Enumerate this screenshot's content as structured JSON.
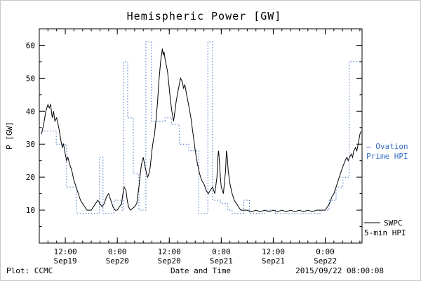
{
  "title": "Hemispheric Power [GW]",
  "ylabel": "P [GW]",
  "footer": {
    "left": "Plot: CCMC",
    "xlabel": "Date and Time",
    "timestamp": "2015/09/22 08:00:08"
  },
  "legend": {
    "ovation": {
      "line1": "– Ovation",
      "line2": "Prime HPI",
      "color": "#3a6fc4"
    },
    "swpc": {
      "line1": "SWPC",
      "line2": "5-min HPI",
      "color": "#000000"
    }
  },
  "chart_data": {
    "type": "line",
    "title": "Hemispheric Power [GW]",
    "xlabel": "Date and Time",
    "ylabel": "P [GW]",
    "x_unit": "hours since 2015-09-19 06:00",
    "xlim": [
      0,
      74.5
    ],
    "ylim": [
      0,
      65
    ],
    "yticks": [
      10,
      20,
      30,
      40,
      50,
      60
    ],
    "xticks": [
      {
        "t": 6,
        "time": "12:00",
        "date": "Sep19"
      },
      {
        "t": 18,
        "time": "0:00",
        "date": "Sep20"
      },
      {
        "t": 30,
        "time": "12:00",
        "date": "Sep20"
      },
      {
        "t": 42,
        "time": "0:00",
        "date": "Sep21"
      },
      {
        "t": 54,
        "time": "12:00",
        "date": "Sep21"
      },
      {
        "t": 66,
        "time": "0:00",
        "date": "Sep22"
      }
    ],
    "grid": false,
    "legend_position": "right-outside",
    "series": [
      {
        "name": "Ovation Prime HPI",
        "color": "#3a6fc4",
        "style": "dotted-step",
        "points": [
          [
            0.5,
            34
          ],
          [
            3.9,
            30
          ],
          [
            6.3,
            17
          ],
          [
            8.6,
            9
          ],
          [
            13.9,
            26
          ],
          [
            14.7,
            9
          ],
          [
            17.2,
            13
          ],
          [
            19.1,
            10
          ],
          [
            19.5,
            55
          ],
          [
            20.4,
            38
          ],
          [
            21.7,
            21
          ],
          [
            23,
            10
          ],
          [
            24.6,
            61
          ],
          [
            25.9,
            37
          ],
          [
            29,
            38
          ],
          [
            30.5,
            36
          ],
          [
            32.3,
            30
          ],
          [
            34.5,
            28
          ],
          [
            36.8,
            9
          ],
          [
            38.9,
            61
          ],
          [
            40,
            13
          ],
          [
            41.9,
            12
          ],
          [
            43.5,
            10
          ],
          [
            44.5,
            9
          ],
          [
            47.2,
            13
          ],
          [
            48.5,
            9
          ],
          [
            52,
            10
          ],
          [
            54.5,
            9
          ],
          [
            64.8,
            10
          ],
          [
            66.9,
            13
          ],
          [
            68.5,
            17
          ],
          [
            70.1,
            20
          ],
          [
            71.5,
            55
          ],
          [
            74.4,
            55
          ]
        ]
      },
      {
        "name": "SWPC 5-min HPI",
        "color": "#000000",
        "style": "solid",
        "points": [
          [
            0.5,
            33
          ],
          [
            1,
            36
          ],
          [
            1.5,
            40
          ],
          [
            2,
            42
          ],
          [
            2.3,
            41
          ],
          [
            2.6,
            42
          ],
          [
            3,
            38
          ],
          [
            3.3,
            40
          ],
          [
            3.6,
            37
          ],
          [
            4,
            38
          ],
          [
            4.5,
            35
          ],
          [
            5,
            31
          ],
          [
            5.3,
            29
          ],
          [
            5.6,
            30
          ],
          [
            6,
            27
          ],
          [
            6.3,
            25
          ],
          [
            6.6,
            26
          ],
          [
            7,
            24
          ],
          [
            7.5,
            22
          ],
          [
            8,
            19
          ],
          [
            8.5,
            17
          ],
          [
            9,
            15
          ],
          [
            9.5,
            13
          ],
          [
            10,
            12
          ],
          [
            10.5,
            11
          ],
          [
            11,
            10
          ],
          [
            12,
            10
          ],
          [
            12.5,
            11
          ],
          [
            13,
            12
          ],
          [
            13.5,
            13
          ],
          [
            14,
            12
          ],
          [
            14.5,
            11
          ],
          [
            15,
            12
          ],
          [
            15.5,
            14
          ],
          [
            16,
            15
          ],
          [
            16.5,
            13
          ],
          [
            17,
            11
          ],
          [
            17.5,
            10
          ],
          [
            18,
            10
          ],
          [
            19,
            12
          ],
          [
            19.3,
            15
          ],
          [
            19.6,
            17
          ],
          [
            20,
            16
          ],
          [
            20.3,
            13
          ],
          [
            20.6,
            11
          ],
          [
            21,
            10
          ],
          [
            22,
            11
          ],
          [
            22.5,
            12
          ],
          [
            23,
            17
          ],
          [
            23.3,
            21
          ],
          [
            23.6,
            24
          ],
          [
            24,
            26
          ],
          [
            24.3,
            24
          ],
          [
            24.6,
            22
          ],
          [
            25,
            20
          ],
          [
            25.3,
            21
          ],
          [
            25.6,
            23
          ],
          [
            26,
            28
          ],
          [
            26.3,
            31
          ],
          [
            26.6,
            33
          ],
          [
            27,
            38
          ],
          [
            27.3,
            43
          ],
          [
            27.6,
            49
          ],
          [
            28,
            55
          ],
          [
            28.2,
            57
          ],
          [
            28.4,
            59
          ],
          [
            28.6,
            57
          ],
          [
            28.8,
            58
          ],
          [
            29,
            56
          ],
          [
            29.3,
            54
          ],
          [
            29.6,
            52
          ],
          [
            30,
            47
          ],
          [
            30.3,
            43
          ],
          [
            30.6,
            40
          ],
          [
            31,
            37
          ],
          [
            31.3,
            40
          ],
          [
            31.6,
            43
          ],
          [
            32,
            46
          ],
          [
            32.3,
            48
          ],
          [
            32.6,
            50
          ],
          [
            33,
            49
          ],
          [
            33.3,
            47
          ],
          [
            33.6,
            48
          ],
          [
            34,
            45
          ],
          [
            34.3,
            43
          ],
          [
            34.6,
            41
          ],
          [
            35,
            38
          ],
          [
            35.5,
            33
          ],
          [
            36,
            28
          ],
          [
            36.5,
            24
          ],
          [
            37,
            21
          ],
          [
            37.5,
            19
          ],
          [
            38,
            18
          ],
          [
            38.5,
            16
          ],
          [
            39,
            15
          ],
          [
            39.5,
            16
          ],
          [
            40,
            17
          ],
          [
            40.5,
            15
          ],
          [
            41,
            20
          ],
          [
            41.2,
            26
          ],
          [
            41.4,
            28
          ],
          [
            41.6,
            24
          ],
          [
            41.8,
            20
          ],
          [
            42,
            17
          ],
          [
            42.5,
            15
          ],
          [
            43,
            22
          ],
          [
            43.2,
            28
          ],
          [
            43.4,
            26
          ],
          [
            43.6,
            22
          ],
          [
            44,
            18
          ],
          [
            44.5,
            15
          ],
          [
            45,
            13
          ],
          [
            45.5,
            12
          ],
          [
            46,
            11
          ],
          [
            46.5,
            10
          ],
          [
            47,
            10
          ],
          [
            48,
            10
          ],
          [
            49,
            9.5
          ],
          [
            50,
            10
          ],
          [
            51,
            9.5
          ],
          [
            52,
            10
          ],
          [
            53,
            9.5
          ],
          [
            54,
            10
          ],
          [
            55,
            9.5
          ],
          [
            56,
            10
          ],
          [
            57,
            9.5
          ],
          [
            58,
            10
          ],
          [
            59,
            9.5
          ],
          [
            60,
            10
          ],
          [
            61,
            9.5
          ],
          [
            62,
            10
          ],
          [
            63,
            9.5
          ],
          [
            64,
            10
          ],
          [
            65,
            10
          ],
          [
            66,
            10
          ],
          [
            66.5,
            11
          ],
          [
            67,
            12
          ],
          [
            67.5,
            14
          ],
          [
            68,
            15
          ],
          [
            68.5,
            17
          ],
          [
            69,
            19
          ],
          [
            69.5,
            21
          ],
          [
            70,
            23
          ],
          [
            70.3,
            24
          ],
          [
            70.6,
            25
          ],
          [
            71,
            26
          ],
          [
            71.3,
            25
          ],
          [
            71.6,
            26
          ],
          [
            72,
            27
          ],
          [
            72.3,
            26
          ],
          [
            72.6,
            28
          ],
          [
            73,
            29
          ],
          [
            73.3,
            28
          ],
          [
            73.6,
            30
          ],
          [
            74,
            33
          ],
          [
            74.3,
            34
          ]
        ]
      }
    ]
  }
}
